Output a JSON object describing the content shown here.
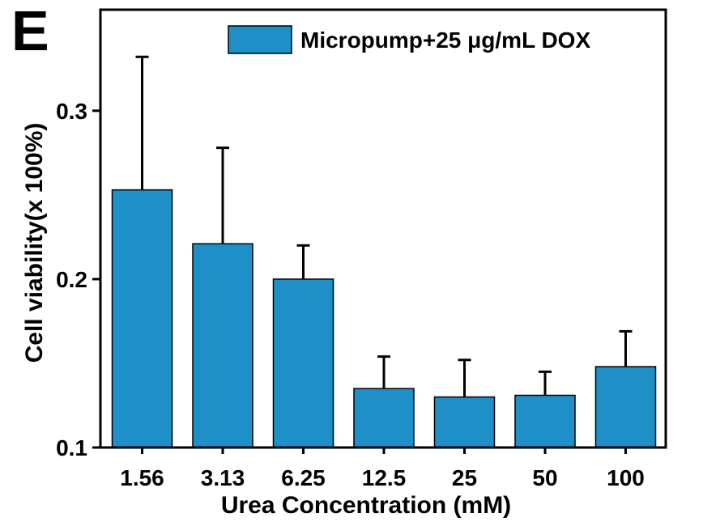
{
  "panel_label": "E",
  "chart_data": {
    "type": "bar",
    "categories": [
      "1.56",
      "3.13",
      "6.25",
      "12.5",
      "25",
      "50",
      "100"
    ],
    "series": [
      {
        "name": "Micropump+25 μg/mL DOX",
        "values": [
          0.253,
          0.221,
          0.2,
          0.135,
          0.13,
          0.131,
          0.148
        ],
        "errors": [
          0.079,
          0.057,
          0.02,
          0.019,
          0.022,
          0.014,
          0.021
        ],
        "color": "#1f8fc7"
      }
    ],
    "xlabel": "Urea Concentration (mM)",
    "ylabel": "Cell viability(x 100%)",
    "ylim": [
      0.1,
      0.36
    ],
    "yticks": [
      0.1,
      0.2,
      0.3
    ],
    "ytick_labels": [
      "0.1",
      "0.2",
      "0.3"
    ],
    "grid": false,
    "legend_position": "top-right"
  }
}
